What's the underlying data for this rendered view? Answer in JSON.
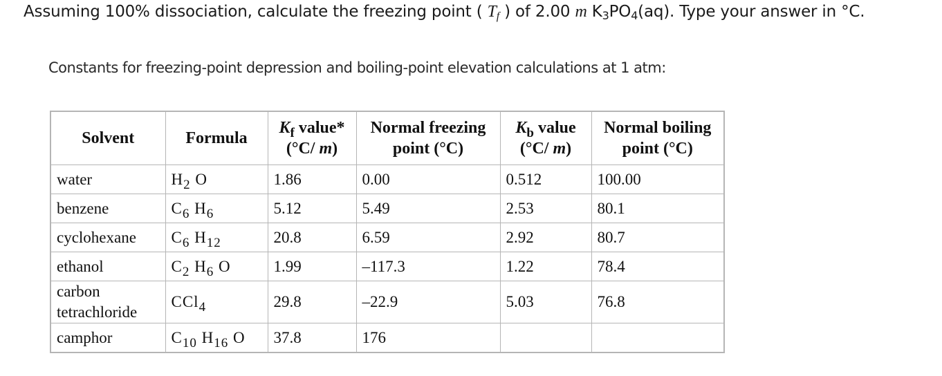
{
  "question": {
    "part1": "Assuming 100% dissociation, calculate the freezing point (",
    "tf_symbol": "T",
    "tf_sub": "f",
    "part2": ") of",
    "concentration": "2.00",
    "molal_unit": "m",
    "compound_k": "K",
    "compound_k_sub": "3",
    "compound_po": "PO",
    "compound_po_sub": "4",
    "compound_state": "(aq)",
    "part3": ". Type your answer in °C."
  },
  "caption": "Constants for freezing-point depression and boiling-point elevation calculations at 1 atm:",
  "table": {
    "headers": {
      "solvent": "Solvent",
      "formula": "Formula",
      "kf_symbol": "K",
      "kf_sub": "f",
      "kf_rest": "value*",
      "kf_unit_open": "(°C/",
      "kf_unit_m": "m",
      "kf_unit_close": ")",
      "nfp_line1": "Normal freezing",
      "nfp_line2": "point (°C)",
      "kb_symbol": "K",
      "kb_sub": "b",
      "kb_rest": "value",
      "kb_unit_open": "(°C/",
      "kb_unit_m": "m",
      "kb_unit_close": ")",
      "nbp_line1": "Normal boiling",
      "nbp_line2": "point (°C)"
    },
    "rows": [
      {
        "solvent": "water",
        "formula": [
          [
            "H",
            "2"
          ],
          [
            "O",
            ""
          ]
        ],
        "kf": "1.86",
        "fp": "0.00",
        "kb": "0.512",
        "bp": "100.00"
      },
      {
        "solvent": "benzene",
        "formula": [
          [
            "C",
            "6"
          ],
          [
            "H",
            "6"
          ]
        ],
        "kf": "5.12",
        "fp": "5.49",
        "kb": "2.53",
        "bp": "80.1"
      },
      {
        "solvent": "cyclohexane",
        "formula": [
          [
            "C",
            "6"
          ],
          [
            "H",
            "12"
          ]
        ],
        "kf": "20.8",
        "fp": "6.59",
        "kb": "2.92",
        "bp": "80.7"
      },
      {
        "solvent": "ethanol",
        "formula": [
          [
            "C",
            "2"
          ],
          [
            "H",
            "6"
          ],
          [
            "O",
            ""
          ]
        ],
        "kf": "1.99",
        "fp": "–117.3",
        "kb": "1.22",
        "bp": "78.4"
      },
      {
        "solvent_line1": "carbon",
        "solvent_line2": "tetrachloride",
        "formula": [
          [
            "CCl",
            "4"
          ]
        ],
        "kf": "29.8",
        "fp": "–22.9",
        "kb": "5.03",
        "bp": "76.8"
      },
      {
        "solvent": "camphor",
        "formula": [
          [
            "C",
            "10"
          ],
          [
            "H",
            "16"
          ],
          [
            "O",
            ""
          ]
        ],
        "kf": "37.8",
        "fp": "176",
        "kb": "",
        "bp": ""
      }
    ]
  }
}
